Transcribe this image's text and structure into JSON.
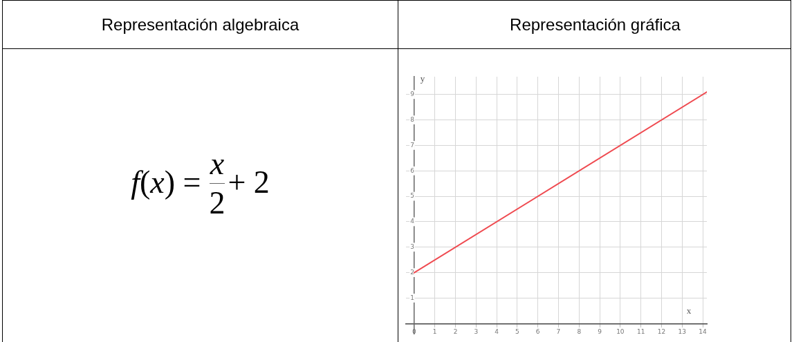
{
  "chart_data": {
    "type": "line",
    "title": "Representación gráfica",
    "xlabel": "x",
    "ylabel": "y",
    "annotations": [
      "Representación algebraica",
      "f(x) =",
      "x",
      "2",
      "+ 2"
    ],
    "x": [
      0,
      14.2
    ],
    "series": [
      {
        "color": "#ef4a50",
        "values": [
          2,
          9.1
        ]
      }
    ],
    "xlim": [
      -0.4,
      14.2
    ],
    "ylim": [
      -0.4,
      9.7
    ],
    "xticks": [
      0,
      1,
      2,
      3,
      4,
      5,
      6,
      7,
      8,
      9,
      10,
      11,
      12,
      13,
      14
    ],
    "yticks": [
      1,
      2,
      3,
      4,
      5,
      6,
      7,
      8,
      9
    ],
    "grid": true,
    "marker": "none"
  }
}
